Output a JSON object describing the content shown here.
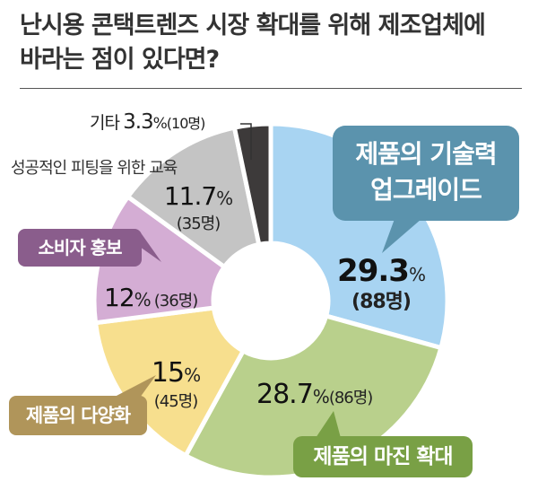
{
  "title_line1": "난시용 콘택트렌즈 시장 확대를 위해 제조업체에",
  "title_line2": "바라는 점이 있다면?",
  "chart_data": {
    "type": "pie",
    "donut": true,
    "unit": "%",
    "categories": [
      "제품의 기술력 업그레이드",
      "제품의 마진 확대",
      "제품의 다양화",
      "소비자 홍보",
      "성공적인 피팅을 위한 교육",
      "기타"
    ],
    "values": [
      29.3,
      28.7,
      15,
      12,
      11.7,
      3.3
    ],
    "counts": [
      88,
      86,
      45,
      36,
      35,
      10
    ],
    "colors": [
      "#a8d4f2",
      "#b9d08c",
      "#f7df8e",
      "#d4add4",
      "#c4c4c4",
      "#3d3a3a"
    ]
  },
  "labels": {
    "tech": {
      "pct": "29.3",
      "sign": "%",
      "count": "(88명)"
    },
    "margin": {
      "pct": "28.7",
      "sign": "%",
      "count": "(86명)"
    },
    "variety": {
      "pct": "15",
      "sign": "%",
      "count": "(45명)"
    },
    "promo": {
      "pct": "12",
      "sign": "%",
      "count": "(36명)"
    },
    "edu": {
      "name": "성공적인 피팅을 위한 교육",
      "pct": "11.7",
      "sign": "%",
      "count": "(35명)"
    },
    "other": {
      "name": "기타",
      "pct": "3.3",
      "sign": "%",
      "count": "(10명)"
    }
  },
  "callouts": {
    "tech_line1": "제품의 기술력",
    "tech_line2": "업그레이드",
    "margin": "제품의 마진 확대",
    "variety": "제품의 다양화",
    "promo": "소비자 홍보"
  },
  "callout_colors": {
    "tech": "#5b93ad",
    "margin": "#79a045",
    "variety": "#b0955a",
    "promo": "#8a5d8c"
  }
}
